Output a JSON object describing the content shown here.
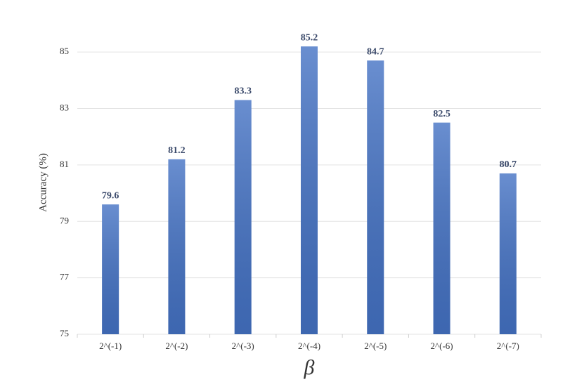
{
  "chart_data": {
    "type": "bar",
    "categories": [
      "2^(-1)",
      "2^(-2)",
      "2^(-3)",
      "2^(-4)",
      "2^(-5)",
      "2^(-6)",
      "2^(-7)"
    ],
    "values": [
      79.6,
      81.2,
      83.3,
      85.2,
      84.7,
      82.5,
      80.7
    ],
    "color": "#4472c4",
    "xlabel": "β",
    "ylabel": "Accuracy (%)",
    "ylim": [
      75,
      86
    ],
    "yticks": [
      75,
      77,
      79,
      81,
      83,
      85
    ],
    "grid": true
  }
}
